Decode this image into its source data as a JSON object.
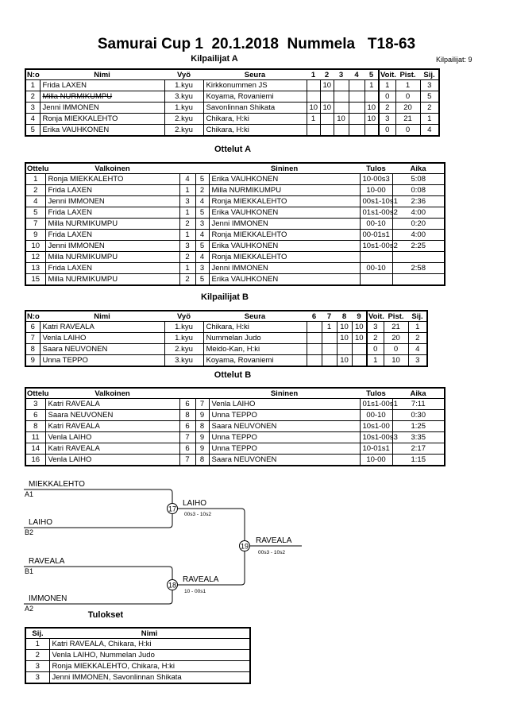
{
  "header": {
    "title": "Samurai Cup 1  20.1.2018  Nummela   T18-63",
    "participants_count": "Kilpailijat: 9"
  },
  "pool_a": {
    "title": "Kilpailijat A",
    "columns": [
      "N:o",
      "Nimi",
      "Vyö",
      "Seura",
      "1",
      "2",
      "3",
      "4",
      "5",
      "Voit.",
      "Pist.",
      "Sij."
    ],
    "rows": [
      {
        "no": "1",
        "name": "Frida LAXEN",
        "belt": "1.kyu",
        "club": "Kirkkonummen JS",
        "scores": [
          "",
          "10",
          "",
          "",
          "1"
        ],
        "wins": "1",
        "points": "1",
        "rank": "3",
        "withdrawn": false
      },
      {
        "no": "2",
        "name": "Milla NURMIKUMPU",
        "belt": "3.kyu",
        "club": "Koyama, Rovaniemi",
        "scores": [
          "",
          "",
          "",
          "",
          ""
        ],
        "wins": "0",
        "points": "0",
        "rank": "5",
        "withdrawn": true
      },
      {
        "no": "3",
        "name": "Jenni IMMONEN",
        "belt": "1.kyu",
        "club": "Savonlinnan Shikata",
        "scores": [
          "10",
          "10",
          "",
          "",
          "10"
        ],
        "wins": "2",
        "points": "20",
        "rank": "2",
        "withdrawn": false
      },
      {
        "no": "4",
        "name": "Ronja MIEKKALEHTO",
        "belt": "2.kyu",
        "club": "Chikara, H:ki",
        "scores": [
          "1",
          "",
          "10",
          "",
          "10"
        ],
        "wins": "3",
        "points": "21",
        "rank": "1",
        "withdrawn": false
      },
      {
        "no": "5",
        "name": "Erika VAUHKONEN",
        "belt": "2.kyu",
        "club": "Chikara, H:ki",
        "scores": [
          "",
          "",
          "",
          "",
          ""
        ],
        "wins": "0",
        "points": "0",
        "rank": "4",
        "withdrawn": false
      }
    ]
  },
  "matches_a": {
    "title": "Ottelut A",
    "columns": [
      "Ottelu",
      "Valkoinen",
      "Sininen",
      "Tulos",
      "Aika"
    ],
    "rows": [
      {
        "match": "1",
        "white": "Ronja MIEKKALEHTO",
        "wn": "4",
        "bn": "5",
        "blue": "Erika VAUHKONEN",
        "result": "10-00s3",
        "time": "5:08"
      },
      {
        "match": "2",
        "white": "Frida LAXEN",
        "wn": "1",
        "bn": "2",
        "blue": "Milla NURMIKUMPU",
        "result": "10-00",
        "time": "0:08"
      },
      {
        "match": "4",
        "white": "Jenni IMMONEN",
        "wn": "3",
        "bn": "4",
        "blue": "Ronja MIEKKALEHTO",
        "result": "00s1-10s1",
        "time": "2:36"
      },
      {
        "match": "5",
        "white": "Frida LAXEN",
        "wn": "1",
        "bn": "5",
        "blue": "Erika VAUHKONEN",
        "result": "01s1-00s2",
        "time": "4:00"
      },
      {
        "match": "7",
        "white": "Milla NURMIKUMPU",
        "wn": "2",
        "bn": "3",
        "blue": "Jenni IMMONEN",
        "result": "00-10",
        "time": "0:20"
      },
      {
        "match": "9",
        "white": "Frida LAXEN",
        "wn": "1",
        "bn": "4",
        "blue": "Ronja MIEKKALEHTO",
        "result": "00-01s1",
        "time": "4:00"
      },
      {
        "match": "10",
        "white": "Jenni IMMONEN",
        "wn": "3",
        "bn": "5",
        "blue": "Erika VAUHKONEN",
        "result": "10s1-00s2",
        "time": "2:25"
      },
      {
        "match": "12",
        "white": "Milla NURMIKUMPU",
        "wn": "2",
        "bn": "4",
        "blue": "Ronja MIEKKALEHTO",
        "result": "",
        "time": ""
      },
      {
        "match": "13",
        "white": "Frida LAXEN",
        "wn": "1",
        "bn": "3",
        "blue": "Jenni IMMONEN",
        "result": "00-10",
        "time": "2:58"
      },
      {
        "match": "15",
        "white": "Milla NURMIKUMPU",
        "wn": "2",
        "bn": "5",
        "blue": "Erika VAUHKONEN",
        "result": "",
        "time": ""
      }
    ]
  },
  "pool_b": {
    "title": "Kilpailijat B",
    "columns": [
      "N:o",
      "Nimi",
      "Vyö",
      "Seura",
      "6",
      "7",
      "8",
      "9",
      "Voit.",
      "Pist.",
      "Sij."
    ],
    "rows": [
      {
        "no": "6",
        "name": "Katri RAVEALA",
        "belt": "1.kyu",
        "club": "Chikara, H:ki",
        "scores": [
          "",
          "1",
          "10",
          "10"
        ],
        "wins": "3",
        "points": "21",
        "rank": "1",
        "withdrawn": false
      },
      {
        "no": "7",
        "name": "Venla LAIHO",
        "belt": "1.kyu",
        "club": "Nummelan Judo",
        "scores": [
          "",
          "",
          "10",
          "10"
        ],
        "wins": "2",
        "points": "20",
        "rank": "2",
        "withdrawn": false
      },
      {
        "no": "8",
        "name": "Saara NEUVONEN",
        "belt": "2.kyu",
        "club": "Meido-Kan, H:ki",
        "scores": [
          "",
          "",
          "",
          ""
        ],
        "wins": "0",
        "points": "0",
        "rank": "4",
        "withdrawn": false
      },
      {
        "no": "9",
        "name": "Unna TEPPO",
        "belt": "3.kyu",
        "club": "Koyama, Rovaniemi",
        "scores": [
          "",
          "",
          "10",
          ""
        ],
        "wins": "1",
        "points": "10",
        "rank": "3",
        "withdrawn": false
      }
    ]
  },
  "matches_b": {
    "title": "Ottelut B",
    "columns": [
      "Ottelu",
      "Valkoinen",
      "Sininen",
      "Tulos",
      "Aika"
    ],
    "rows": [
      {
        "match": "3",
        "white": "Katri RAVEALA",
        "wn": "6",
        "bn": "7",
        "blue": "Venla LAIHO",
        "result": "01s1-00s1",
        "time": "7:11"
      },
      {
        "match": "6",
        "white": "Saara NEUVONEN",
        "wn": "8",
        "bn": "9",
        "blue": "Unna TEPPO",
        "result": "00-10",
        "time": "0:30"
      },
      {
        "match": "8",
        "white": "Katri RAVEALA",
        "wn": "6",
        "bn": "8",
        "blue": "Saara NEUVONEN",
        "result": "10s1-00",
        "time": "1:25"
      },
      {
        "match": "11",
        "white": "Venla LAIHO",
        "wn": "7",
        "bn": "9",
        "blue": "Unna TEPPO",
        "result": "10s1-00s3",
        "time": "3:35"
      },
      {
        "match": "14",
        "white": "Katri RAVEALA",
        "wn": "6",
        "bn": "9",
        "blue": "Unna TEPPO",
        "result": "10-01s1",
        "time": "2:17"
      },
      {
        "match": "16",
        "white": "Venla LAIHO",
        "wn": "7",
        "bn": "8",
        "blue": "Saara NEUVONEN",
        "result": "10-00",
        "time": "1:15"
      }
    ]
  },
  "bracket": {
    "semi1": {
      "top_name": "MIEKKALEHTO",
      "top_seed": "A1",
      "bottom_name": "LAIHO",
      "bottom_seed": "B2",
      "match": "17",
      "winner": "LAIHO",
      "score": "00s3 - 10s2"
    },
    "semi2": {
      "top_name": "RAVEALA",
      "top_seed": "B1",
      "bottom_name": "IMMONEN",
      "bottom_seed": "A2",
      "match": "18",
      "winner": "RAVEALA",
      "score": "10 - 00s1"
    },
    "final": {
      "match": "19",
      "winner": "RAVEALA",
      "score": "00s3 - 10s2"
    }
  },
  "results": {
    "title": "Tulokset",
    "columns": [
      "Sij.",
      "Nimi"
    ],
    "rows": [
      {
        "rank": "1",
        "name": "Katri RAVEALA, Chikara, H:ki"
      },
      {
        "rank": "2",
        "name": "Venla LAIHO, Nummelan Judo"
      },
      {
        "rank": "3",
        "name": "Ronja MIEKKALEHTO, Chikara, H:ki"
      },
      {
        "rank": "3",
        "name": "Jenni IMMONEN, Savonlinnan Shikata"
      }
    ]
  }
}
